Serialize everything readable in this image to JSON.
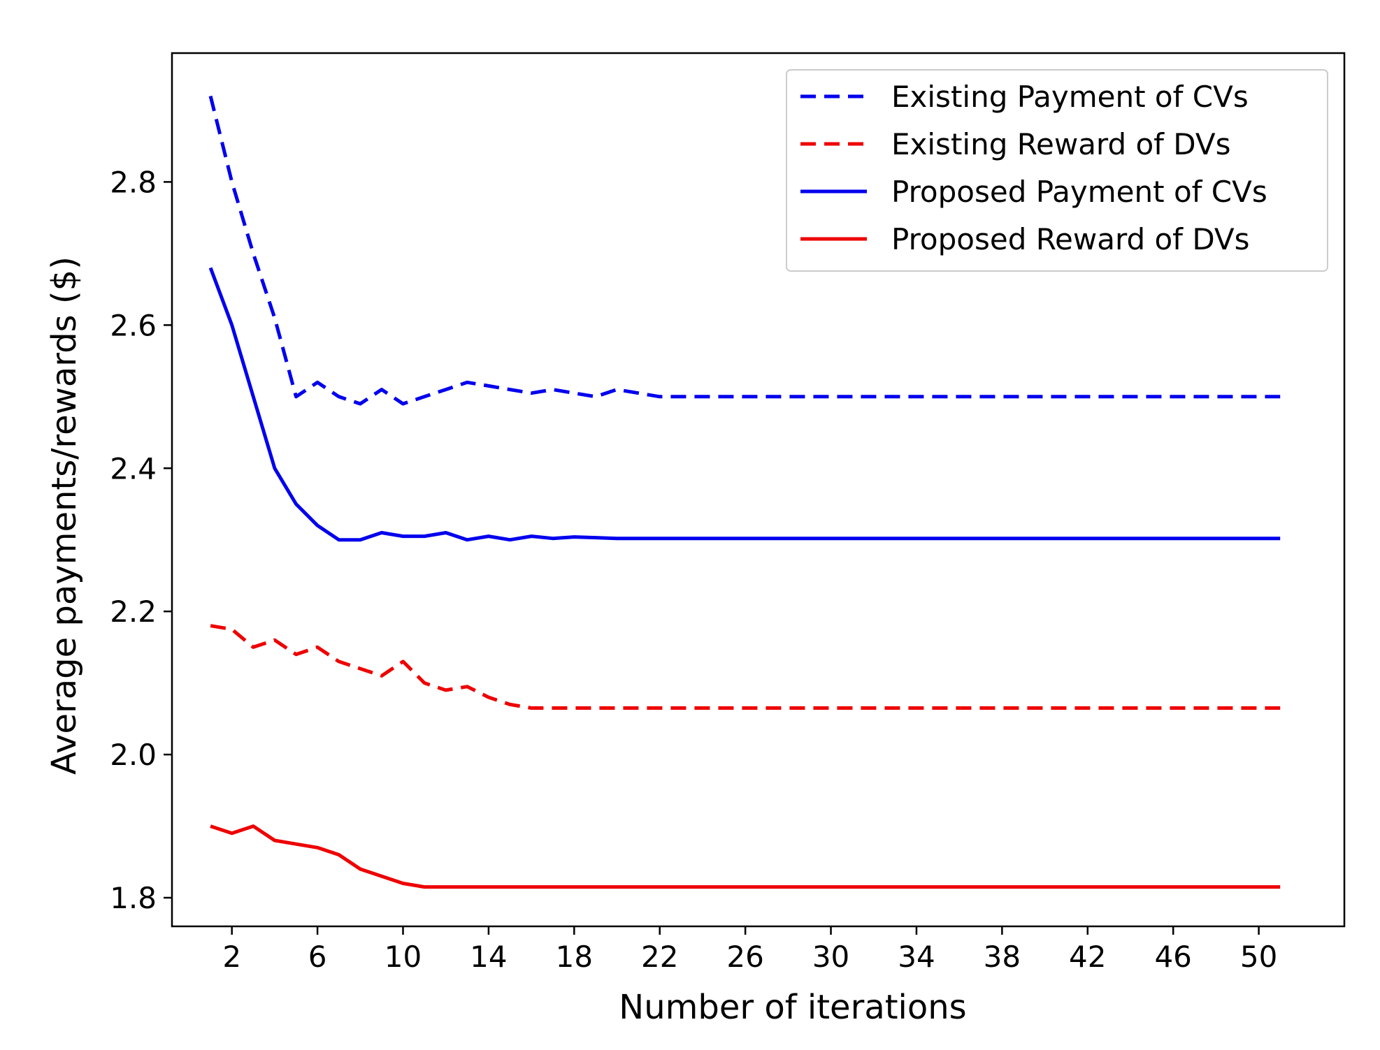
{
  "chart_data": {
    "type": "line",
    "title": "",
    "xlabel": "Number of iterations",
    "ylabel": "Average payments/rewards ($)",
    "xlim": [
      -0.8,
      54
    ],
    "ylim": [
      1.76,
      2.98
    ],
    "xticks": [
      2,
      6,
      10,
      14,
      18,
      22,
      26,
      30,
      34,
      38,
      42,
      46,
      50
    ],
    "yticks": [
      1.8,
      2.0,
      2.2,
      2.4,
      2.6,
      2.8
    ],
    "ytick_labels": [
      "1.8",
      "2.0",
      "2.2",
      "2.4",
      "2.6",
      "2.8"
    ],
    "grid": false,
    "legend_position": "top-right",
    "x": [
      1,
      2,
      3,
      4,
      5,
      6,
      7,
      8,
      9,
      10,
      11,
      12,
      13,
      14,
      15,
      16,
      17,
      18,
      19,
      20,
      21,
      22,
      23,
      24,
      25,
      26,
      27,
      28,
      29,
      30,
      31,
      32,
      33,
      34,
      35,
      36,
      37,
      38,
      39,
      40,
      41,
      42,
      43,
      44,
      45,
      46,
      47,
      48,
      49,
      50,
      51
    ],
    "series": [
      {
        "name": "Existing Payment of CVs",
        "color": "#0000ee",
        "dash": true,
        "values": [
          2.92,
          2.8,
          2.7,
          2.61,
          2.5,
          2.52,
          2.5,
          2.49,
          2.51,
          2.49,
          2.5,
          2.51,
          2.52,
          2.515,
          2.51,
          2.505,
          2.51,
          2.505,
          2.5,
          2.51,
          2.505,
          2.5,
          2.5,
          2.5,
          2.5,
          2.5,
          2.5,
          2.5,
          2.5,
          2.5,
          2.5,
          2.5,
          2.5,
          2.5,
          2.5,
          2.5,
          2.5,
          2.5,
          2.5,
          2.5,
          2.5,
          2.5,
          2.5,
          2.5,
          2.5,
          2.5,
          2.5,
          2.5,
          2.5,
          2.5,
          2.5
        ]
      },
      {
        "name": "Existing Reward of DVs",
        "color": "#ee0000",
        "dash": true,
        "values": [
          2.18,
          2.175,
          2.15,
          2.16,
          2.14,
          2.15,
          2.13,
          2.12,
          2.11,
          2.13,
          2.1,
          2.09,
          2.095,
          2.08,
          2.07,
          2.065,
          2.065,
          2.065,
          2.065,
          2.065,
          2.065,
          2.065,
          2.065,
          2.065,
          2.065,
          2.065,
          2.065,
          2.065,
          2.065,
          2.065,
          2.065,
          2.065,
          2.065,
          2.065,
          2.065,
          2.065,
          2.065,
          2.065,
          2.065,
          2.065,
          2.065,
          2.065,
          2.065,
          2.065,
          2.065,
          2.065,
          2.065,
          2.065,
          2.065,
          2.065,
          2.065
        ]
      },
      {
        "name": "Proposed Payment of CVs",
        "color": "#0000ee",
        "dash": false,
        "values": [
          2.68,
          2.6,
          2.5,
          2.4,
          2.35,
          2.32,
          2.3,
          2.3,
          2.31,
          2.305,
          2.305,
          2.31,
          2.3,
          2.305,
          2.3,
          2.305,
          2.302,
          2.304,
          2.303,
          2.302,
          2.302,
          2.302,
          2.302,
          2.302,
          2.302,
          2.302,
          2.302,
          2.302,
          2.302,
          2.302,
          2.302,
          2.302,
          2.302,
          2.302,
          2.302,
          2.302,
          2.302,
          2.302,
          2.302,
          2.302,
          2.302,
          2.302,
          2.302,
          2.302,
          2.302,
          2.302,
          2.302,
          2.302,
          2.302,
          2.302,
          2.302
        ]
      },
      {
        "name": "Proposed Reward of DVs",
        "color": "#ee0000",
        "dash": false,
        "values": [
          1.9,
          1.89,
          1.9,
          1.88,
          1.875,
          1.87,
          1.86,
          1.84,
          1.83,
          1.82,
          1.815,
          1.815,
          1.815,
          1.815,
          1.815,
          1.815,
          1.815,
          1.815,
          1.815,
          1.815,
          1.815,
          1.815,
          1.815,
          1.815,
          1.815,
          1.815,
          1.815,
          1.815,
          1.815,
          1.815,
          1.815,
          1.815,
          1.815,
          1.815,
          1.815,
          1.815,
          1.815,
          1.815,
          1.815,
          1.815,
          1.815,
          1.815,
          1.815,
          1.815,
          1.815,
          1.815,
          1.815,
          1.815,
          1.815,
          1.815,
          1.815
        ]
      }
    ]
  }
}
